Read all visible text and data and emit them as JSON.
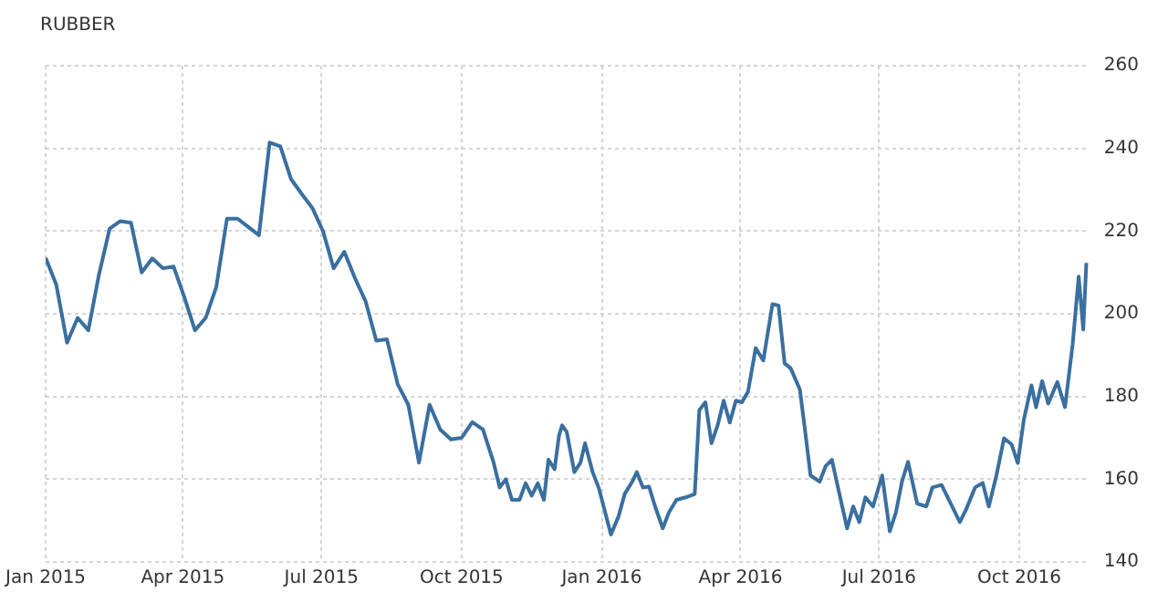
{
  "chart_data": {
    "type": "line",
    "title": "RUBBER",
    "x": [
      "2015-01-01",
      "2015-01-08",
      "2015-01-15",
      "2015-01-22",
      "2015-01-29",
      "2015-02-05",
      "2015-02-12",
      "2015-02-19",
      "2015-02-26",
      "2015-03-05",
      "2015-03-12",
      "2015-03-19",
      "2015-03-26",
      "2015-04-02",
      "2015-04-09",
      "2015-04-16",
      "2015-04-23",
      "2015-04-30",
      "2015-05-07",
      "2015-05-14",
      "2015-05-21",
      "2015-05-28",
      "2015-06-04",
      "2015-06-11",
      "2015-06-18",
      "2015-06-25",
      "2015-07-02",
      "2015-07-09",
      "2015-07-16",
      "2015-07-23",
      "2015-07-30",
      "2015-08-06",
      "2015-08-13",
      "2015-08-20",
      "2015-08-27",
      "2015-09-03",
      "2015-09-10",
      "2015-09-17",
      "2015-09-24",
      "2015-10-01",
      "2015-10-08",
      "2015-10-15",
      "2015-10-22",
      "2015-10-26",
      "2015-10-30",
      "2015-11-03",
      "2015-11-08",
      "2015-11-12",
      "2015-11-16",
      "2015-11-20",
      "2015-11-24",
      "2015-11-27",
      "2015-12-01",
      "2015-12-04",
      "2015-12-06",
      "2015-12-09",
      "2015-12-14",
      "2015-12-18",
      "2015-12-21",
      "2015-12-26",
      "2015-12-30",
      "2016-01-07",
      "2016-01-12",
      "2016-01-16",
      "2016-01-21",
      "2016-01-24",
      "2016-01-28",
      "2016-02-01",
      "2016-02-05",
      "2016-02-10",
      "2016-02-14",
      "2016-02-19",
      "2016-02-25",
      "2016-03-02",
      "2016-03-05",
      "2016-03-09",
      "2016-03-13",
      "2016-03-17",
      "2016-03-21",
      "2016-03-25",
      "2016-03-29",
      "2016-04-02",
      "2016-04-06",
      "2016-04-11",
      "2016-04-16",
      "2016-04-22",
      "2016-04-26",
      "2016-04-30",
      "2016-05-04",
      "2016-05-10",
      "2016-05-13",
      "2016-05-17",
      "2016-05-23",
      "2016-05-27",
      "2016-05-31",
      "2016-06-04",
      "2016-06-10",
      "2016-06-14",
      "2016-06-18",
      "2016-06-22",
      "2016-06-27",
      "2016-07-03",
      "2016-07-08",
      "2016-07-12",
      "2016-07-16",
      "2016-07-20",
      "2016-07-26",
      "2016-08-01",
      "2016-08-05",
      "2016-08-11",
      "2016-08-17",
      "2016-08-23",
      "2016-08-27",
      "2016-09-02",
      "2016-09-07",
      "2016-09-11",
      "2016-09-16",
      "2016-09-21",
      "2016-09-26",
      "2016-09-30",
      "2016-10-04",
      "2016-10-09",
      "2016-10-12",
      "2016-10-16",
      "2016-10-20",
      "2016-10-26",
      "2016-10-31",
      "2016-11-05",
      "2016-11-09",
      "2016-11-12",
      "2016-11-14"
    ],
    "series": [
      {
        "color": "#3a6f9f",
        "values": [
          213.5,
          207,
          193,
          199,
          196,
          209.5,
          220.6,
          222.4,
          222,
          210,
          213.4,
          211,
          211.4,
          204,
          196,
          199,
          206.5,
          223,
          223,
          221,
          219,
          241.4,
          240.5,
          232.6,
          229,
          225.6,
          220,
          211,
          215,
          208.6,
          203,
          193.5,
          193.8,
          183,
          178,
          164,
          178,
          172,
          169.6,
          170,
          173.8,
          172,
          164,
          158,
          160,
          155,
          155,
          159,
          156,
          159,
          155,
          164.7,
          162.4,
          170.7,
          173,
          171.4,
          161.7,
          164,
          168.7,
          161.7,
          157.9,
          146.6,
          151,
          156.4,
          159.4,
          161.7,
          158,
          158.2,
          153.4,
          148.1,
          151.9,
          155,
          155.6,
          156.4,
          176.7,
          178.6,
          168.7,
          173,
          179,
          173.7,
          179,
          178.6,
          181.2,
          191.7,
          188.7,
          202.3,
          202,
          188,
          186.8,
          181.7,
          173,
          160.9,
          159.4,
          163.2,
          164.7,
          158,
          148.1,
          153.4,
          149.6,
          155.6,
          153.4,
          160.9,
          147.4,
          151.9,
          159.4,
          164.2,
          154.1,
          153.4,
          158,
          158.6,
          154.1,
          149.6,
          152.6,
          158,
          159.1,
          153.4,
          160.9,
          169.9,
          168.4,
          163.9,
          174.4,
          182.7,
          177.4,
          183.7,
          178.3,
          183.5,
          177.4,
          192.5,
          209,
          196.2,
          212.3
        ]
      }
    ],
    "xlim": [
      "2015-01-01",
      "2016-11-16"
    ],
    "xticks": [
      {
        "value": "2015-01-01",
        "label": "Jan 2015"
      },
      {
        "value": "2015-04-01",
        "label": "Apr 2015"
      },
      {
        "value": "2015-07-01",
        "label": "Jul 2015"
      },
      {
        "value": "2015-10-01",
        "label": "Oct 2015"
      },
      {
        "value": "2016-01-01",
        "label": "Jan 2016"
      },
      {
        "value": "2016-04-01",
        "label": "Apr 2016"
      },
      {
        "value": "2016-07-01",
        "label": "Jul 2016"
      },
      {
        "value": "2016-10-01",
        "label": "Oct 2016"
      }
    ],
    "ylim": [
      140,
      260
    ],
    "yticks": [
      140,
      160,
      180,
      200,
      220,
      240,
      260
    ],
    "grid": true,
    "marker": "none",
    "line_style": "solid",
    "legend": false
  }
}
